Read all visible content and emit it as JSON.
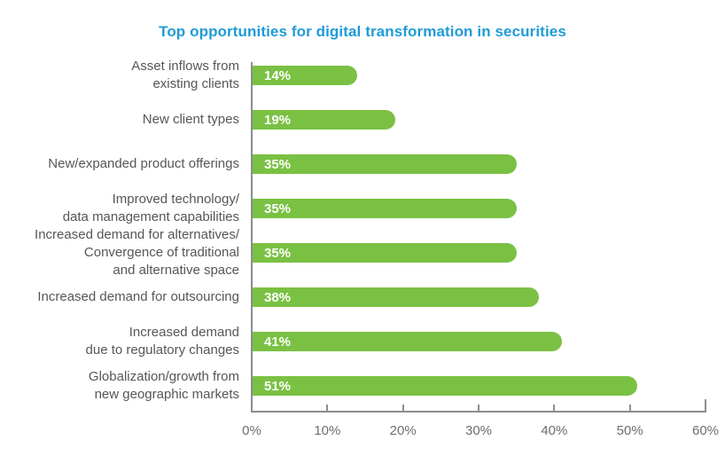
{
  "chart_data": {
    "type": "bar",
    "orientation": "horizontal",
    "title": "Top opportunities for digital transformation in securities",
    "categories": [
      "Asset inflows from\nexisting clients",
      "New client types",
      "New/expanded product offerings",
      "Improved technology/\ndata management capabilities",
      "Increased demand for alternatives/\nConvergence of traditional\nand alternative space",
      "Increased demand for outsourcing",
      "Increased demand\ndue to regulatory changes",
      "Globalization/growth from\nnew geographic markets"
    ],
    "values": [
      14,
      19,
      35,
      35,
      35,
      38,
      41,
      51
    ],
    "value_labels": [
      "14%",
      "19%",
      "35%",
      "35%",
      "35%",
      "38%",
      "41%",
      "51%"
    ],
    "xlabel": "",
    "ylabel": "",
    "xlim": [
      0,
      60
    ],
    "x_ticks": [
      "0%",
      "10%",
      "20%",
      "30%",
      "40%",
      "50%",
      "60%"
    ],
    "grid": false,
    "legend": false,
    "colors": {
      "bar": "#7ac143",
      "title": "#1f9bd7",
      "category_label": "#55565a",
      "value_label": "#ffffff",
      "axis": "#8b8d90",
      "tick_label": "#6d6e71"
    }
  }
}
